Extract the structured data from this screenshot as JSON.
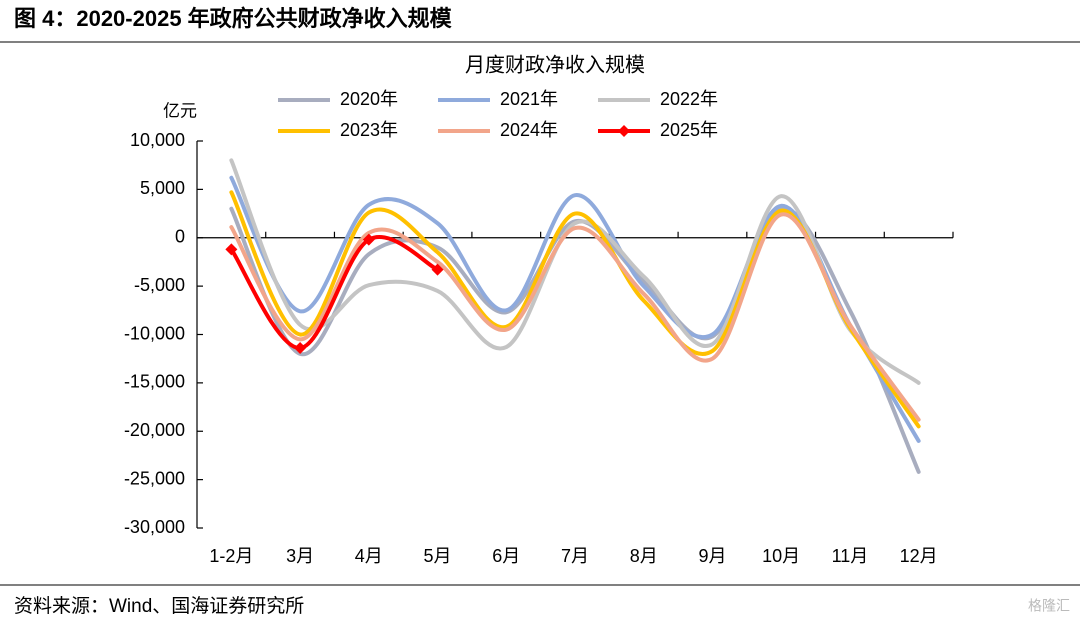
{
  "header": {
    "title": "图 4：2020-2025 年政府公共财政净收入规模"
  },
  "chart_data": {
    "type": "line",
    "title": "月度财政净收入规模",
    "y_label": "亿元",
    "categories": [
      "1-2月",
      "3月",
      "4月",
      "5月",
      "6月",
      "7月",
      "8月",
      "9月",
      "10月",
      "11月",
      "12月"
    ],
    "series": [
      {
        "name": "2020年",
        "color": "#a8adbf",
        "values": [
          3000,
          -12000,
          -1700,
          -1000,
          -7700,
          1700,
          -4500,
          -10200,
          3000,
          -7500,
          -24200
        ]
      },
      {
        "name": "2021年",
        "color": "#8faadc",
        "values": [
          6200,
          -7600,
          3400,
          1500,
          -7500,
          4400,
          -5000,
          -10000,
          3300,
          -9000,
          -21000
        ]
      },
      {
        "name": "2022年",
        "color": "#c4c4c4",
        "values": [
          8000,
          -9000,
          -4900,
          -5500,
          -11300,
          1500,
          -4000,
          -11000,
          4300,
          -9500,
          -15000
        ]
      },
      {
        "name": "2023年",
        "color": "#ffc000",
        "values": [
          4700,
          -10000,
          2600,
          -1500,
          -9200,
          2500,
          -6500,
          -11700,
          2800,
          -9300,
          -19500
        ]
      },
      {
        "name": "2024年",
        "color": "#f2a58a",
        "values": [
          1100,
          -10500,
          500,
          -2500,
          -9500,
          1000,
          -5800,
          -12500,
          2400,
          -9000,
          -18800
        ]
      },
      {
        "name": "2025年",
        "color": "#ff0000",
        "marker": "diamond",
        "values": [
          -1200,
          -11400,
          -200,
          -3300,
          null,
          null,
          null,
          null,
          null,
          null,
          null
        ]
      }
    ],
    "ylim": [
      -30000,
      10000
    ],
    "yticks": [
      {
        "value": -30000,
        "label": "-30,000"
      },
      {
        "value": -25000,
        "label": "-25,000"
      },
      {
        "value": -20000,
        "label": "-20,000"
      },
      {
        "value": -15000,
        "label": "-15,000"
      },
      {
        "value": -10000,
        "label": "-10,000"
      },
      {
        "value": -5000,
        "label": "-5,000"
      },
      0,
      {
        "value": 5000,
        "label": "5,000"
      },
      {
        "value": 10000,
        "label": "10,000"
      }
    ],
    "grid": false
  },
  "footer": {
    "source": "资料来源：Wind、国海证券研究所",
    "watermark": "格隆汇"
  }
}
